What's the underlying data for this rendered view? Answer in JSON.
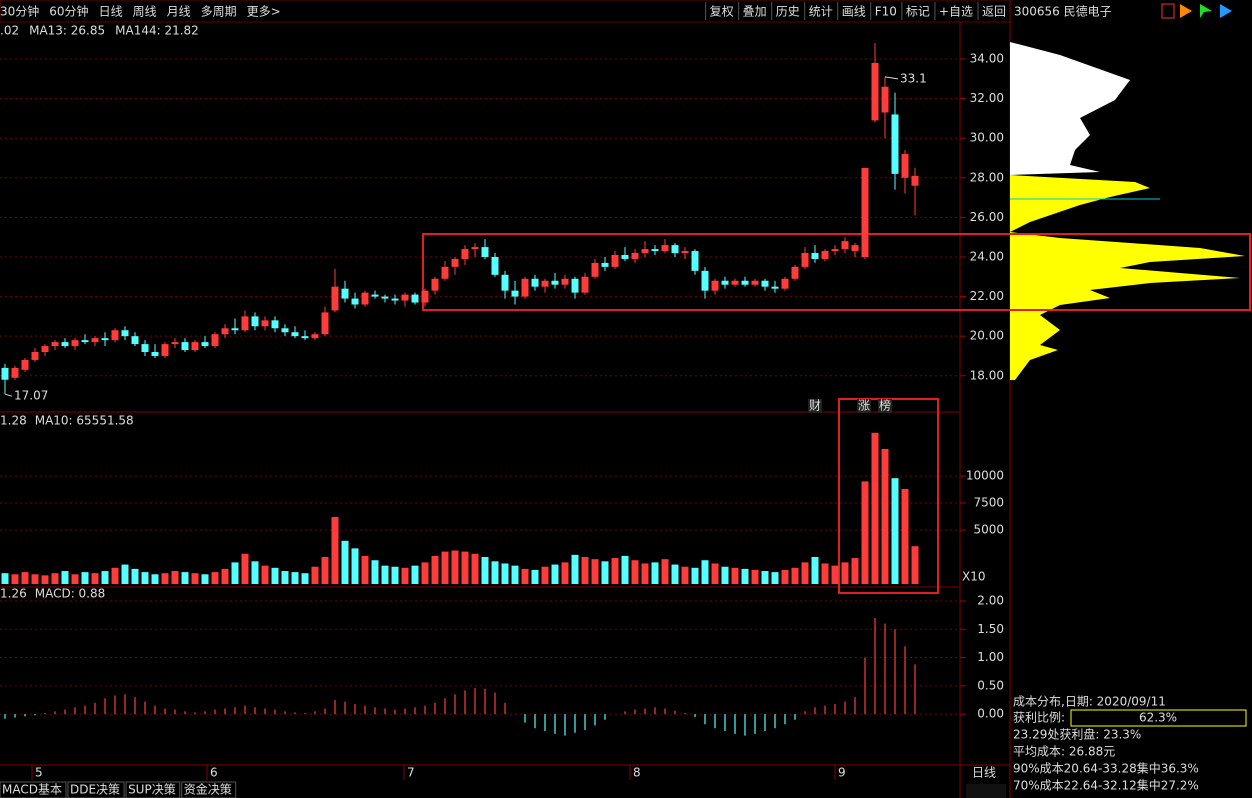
{
  "toolbar": {
    "periods": [
      "30分钟",
      "60分钟",
      "日线",
      "周线",
      "月线",
      "多周期",
      "更多>"
    ],
    "tools": [
      "复权",
      "叠加",
      "历史",
      "统计",
      "画线",
      "F10",
      "标记",
      "+自选",
      "返回"
    ],
    "stock": "300656 民德电子"
  },
  "price_panel": {
    "legend": [
      ".02",
      "MA13: 26.85",
      "MA144: 21.82"
    ],
    "ylim": [
      16.17,
      35.87
    ],
    "yticks": [
      {
        "value": 34,
        "label": "34.00"
      },
      {
        "value": 32,
        "label": "32.00"
      },
      {
        "value": 30,
        "label": "30.00"
      },
      {
        "value": 28,
        "label": "28.00"
      },
      {
        "value": 26,
        "label": "26.00"
      },
      {
        "value": 24,
        "label": "24.00"
      },
      {
        "value": 22,
        "label": "22.00"
      },
      {
        "value": 20,
        "label": "20.00"
      },
      {
        "value": 18,
        "label": "18.00"
      }
    ],
    "markers": [
      "财",
      "涨",
      "榜"
    ],
    "candles": [
      [
        18.4,
        18.6,
        17.07,
        17.8
      ],
      [
        17.9,
        18.5,
        17.8,
        18.4
      ],
      [
        18.3,
        18.9,
        18.2,
        18.8
      ],
      [
        18.8,
        19.4,
        18.7,
        19.2
      ],
      [
        19.2,
        19.6,
        19.0,
        19.5
      ],
      [
        19.5,
        19.8,
        19.3,
        19.7
      ],
      [
        19.7,
        19.9,
        19.4,
        19.5
      ],
      [
        19.5,
        19.9,
        19.3,
        19.8
      ],
      [
        19.8,
        20.1,
        19.6,
        19.7
      ],
      [
        19.7,
        20.0,
        19.5,
        19.9
      ],
      [
        19.9,
        20.2,
        19.5,
        19.8
      ],
      [
        19.8,
        20.4,
        19.7,
        20.3
      ],
      [
        20.3,
        20.5,
        19.8,
        20.0
      ],
      [
        20.0,
        20.2,
        19.5,
        19.6
      ],
      [
        19.6,
        19.8,
        19.0,
        19.2
      ],
      [
        19.2,
        19.6,
        18.9,
        19.0
      ],
      [
        19.0,
        19.7,
        18.9,
        19.6
      ],
      [
        19.6,
        19.9,
        19.4,
        19.7
      ],
      [
        19.7,
        19.9,
        19.2,
        19.3
      ],
      [
        19.3,
        19.8,
        19.2,
        19.7
      ],
      [
        19.7,
        20.0,
        19.4,
        19.5
      ],
      [
        19.5,
        20.2,
        19.4,
        20.1
      ],
      [
        20.1,
        20.6,
        19.9,
        20.4
      ],
      [
        20.4,
        20.9,
        20.1,
        20.3
      ],
      [
        20.3,
        21.3,
        20.2,
        21.0
      ],
      [
        21.0,
        21.2,
        20.3,
        20.5
      ],
      [
        20.5,
        21.0,
        20.3,
        20.8
      ],
      [
        20.8,
        21.0,
        20.2,
        20.4
      ],
      [
        20.4,
        20.6,
        20.0,
        20.2
      ],
      [
        20.2,
        20.5,
        19.9,
        20.0
      ],
      [
        20.0,
        20.3,
        19.8,
        19.9
      ],
      [
        19.9,
        20.2,
        19.8,
        20.1
      ],
      [
        20.1,
        21.5,
        20.0,
        21.2
      ],
      [
        21.3,
        23.4,
        21.2,
        22.5
      ],
      [
        22.4,
        22.8,
        21.7,
        21.9
      ],
      [
        21.9,
        22.2,
        21.4,
        21.6
      ],
      [
        21.6,
        22.3,
        21.5,
        22.2
      ],
      [
        22.1,
        22.3,
        21.9,
        22.0
      ],
      [
        22.0,
        22.1,
        21.7,
        21.9
      ],
      [
        21.9,
        22.1,
        21.6,
        21.8
      ],
      [
        21.8,
        22.2,
        21.5,
        22.1
      ],
      [
        22.1,
        22.2,
        21.6,
        21.7
      ],
      [
        21.7,
        22.4,
        21.5,
        22.3
      ],
      [
        22.3,
        23.0,
        22.1,
        22.9
      ],
      [
        22.9,
        23.8,
        22.8,
        23.5
      ],
      [
        23.5,
        24.0,
        23.1,
        23.9
      ],
      [
        23.9,
        24.6,
        23.6,
        24.4
      ],
      [
        24.4,
        24.7,
        24.0,
        24.5
      ],
      [
        24.5,
        24.9,
        23.9,
        24.0
      ],
      [
        24.0,
        24.2,
        23.0,
        23.1
      ],
      [
        23.1,
        23.3,
        21.9,
        22.3
      ],
      [
        22.3,
        22.8,
        21.6,
        22.0
      ],
      [
        22.0,
        23.0,
        21.9,
        22.9
      ],
      [
        22.9,
        23.1,
        22.3,
        22.5
      ],
      [
        22.5,
        22.9,
        22.2,
        22.8
      ],
      [
        22.8,
        23.2,
        22.4,
        22.6
      ],
      [
        22.6,
        23.1,
        22.4,
        22.9
      ],
      [
        22.9,
        23.0,
        21.9,
        22.2
      ],
      [
        22.2,
        23.2,
        22.1,
        23.0
      ],
      [
        23.0,
        23.9,
        22.9,
        23.7
      ],
      [
        23.7,
        24.0,
        23.3,
        23.5
      ],
      [
        23.5,
        24.3,
        23.4,
        24.1
      ],
      [
        24.1,
        24.5,
        23.8,
        23.9
      ],
      [
        23.9,
        24.4,
        23.7,
        24.2
      ],
      [
        24.2,
        24.8,
        24.0,
        24.4
      ],
      [
        24.4,
        24.6,
        24.1,
        24.3
      ],
      [
        24.3,
        24.9,
        24.2,
        24.6
      ],
      [
        24.6,
        24.7,
        24.0,
        24.2
      ],
      [
        24.2,
        24.5,
        23.9,
        24.3
      ],
      [
        24.3,
        24.4,
        23.1,
        23.3
      ],
      [
        23.3,
        23.5,
        21.9,
        22.3
      ],
      [
        22.3,
        22.9,
        22.1,
        22.8
      ],
      [
        22.8,
        23.0,
        22.4,
        22.6
      ],
      [
        22.6,
        22.9,
        22.5,
        22.8
      ],
      [
        22.8,
        23.0,
        22.5,
        22.6
      ],
      [
        22.6,
        22.9,
        22.5,
        22.8
      ],
      [
        22.8,
        22.9,
        22.3,
        22.5
      ],
      [
        22.5,
        22.8,
        22.2,
        22.4
      ],
      [
        22.4,
        23.0,
        22.3,
        22.9
      ],
      [
        22.9,
        23.6,
        22.8,
        23.5
      ],
      [
        23.5,
        24.5,
        23.4,
        24.2
      ],
      [
        24.2,
        24.6,
        23.7,
        23.9
      ],
      [
        23.9,
        24.4,
        23.8,
        24.3
      ],
      [
        24.3,
        24.6,
        24.1,
        24.4
      ],
      [
        24.4,
        25.0,
        24.2,
        24.8
      ],
      [
        24.3,
        24.7,
        24.0,
        24.6
      ],
      [
        24.0,
        28.5,
        23.9,
        28.5
      ],
      [
        30.9,
        34.81,
        30.8,
        33.8
      ],
      [
        31.3,
        33.1,
        30.0,
        32.6
      ],
      [
        31.2,
        32.3,
        27.4,
        28.2
      ],
      [
        28.0,
        29.4,
        27.2,
        29.2
      ],
      [
        27.6,
        28.5,
        26.1,
        28.1
      ]
    ]
  },
  "volume_panel": {
    "legend": [
      "1.28",
      "MA10: 65551.58"
    ],
    "unit": "X10",
    "ylim": [
      0,
      15926
    ],
    "yticks": [
      10000,
      7500,
      5000
    ],
    "values": [
      1000,
      900,
      1100,
      900,
      800,
      1000,
      1200,
      900,
      1100,
      1000,
      1200,
      1500,
      1800,
      1400,
      1100,
      900,
      1000,
      1200,
      1100,
      1000,
      900,
      1100,
      1400,
      2000,
      2800,
      2100,
      1700,
      1500,
      1200,
      1100,
      1000,
      1600,
      2500,
      6200,
      4000,
      3300,
      2600,
      2200,
      1700,
      1600,
      1500,
      1700,
      2000,
      2600,
      3000,
      3100,
      3000,
      2800,
      2500,
      2100,
      1900,
      1700,
      1400,
      1300,
      1600,
      1800,
      2000,
      2700,
      2500,
      2300,
      2100,
      2400,
      2600,
      2200,
      1900,
      2000,
      2300,
      1800,
      1600,
      1500,
      2200,
      1900,
      1600,
      1500,
      1400,
      1300,
      1200,
      1100,
      1300,
      1500,
      2000,
      2500,
      1900,
      1700,
      2000,
      2400,
      9500,
      14000,
      12500,
      9800,
      8800,
      3500
    ]
  },
  "macd_panel": {
    "legend": [
      "1.26",
      "MACD: 0.88"
    ],
    "ylim": [
      -0.9,
      2.23
    ],
    "yticks": [
      {
        "value": 2,
        "label": "2.00"
      },
      {
        "value": 1.5,
        "label": "1.50"
      },
      {
        "value": 1,
        "label": "1.00"
      },
      {
        "value": 0.5,
        "label": "0.50"
      },
      {
        "value": 0,
        "label": "0.00"
      }
    ],
    "values": [
      -0.08,
      -0.06,
      -0.04,
      -0.02,
      0.02,
      0.05,
      0.08,
      0.12,
      0.15,
      0.2,
      0.28,
      0.33,
      0.35,
      0.3,
      0.22,
      0.15,
      0.1,
      0.08,
      0.05,
      0.03,
      0.05,
      0.08,
      0.1,
      0.12,
      0.15,
      0.12,
      0.1,
      0.08,
      0.05,
      0.03,
      0.02,
      0.05,
      0.1,
      0.25,
      0.22,
      0.18,
      0.15,
      0.12,
      0.1,
      0.08,
      0.1,
      0.12,
      0.15,
      0.2,
      0.28,
      0.35,
      0.42,
      0.46,
      0.45,
      0.38,
      0.2,
      0.0,
      -0.15,
      -0.25,
      -0.3,
      -0.35,
      -0.38,
      -0.33,
      -0.28,
      -0.2,
      -0.1,
      0.0,
      0.05,
      0.08,
      0.1,
      0.12,
      0.1,
      0.06,
      0.02,
      -0.05,
      -0.18,
      -0.25,
      -0.3,
      -0.35,
      -0.38,
      -0.35,
      -0.3,
      -0.25,
      -0.18,
      -0.1,
      0.05,
      0.12,
      0.15,
      0.18,
      0.22,
      0.3,
      1.0,
      1.7,
      1.6,
      1.5,
      1.2,
      0.88
    ]
  },
  "months": [
    "5",
    "6",
    "7",
    "8",
    "9"
  ],
  "bottom_tabs": [
    "MACD基本",
    "DDE决策",
    "SUP决策",
    "资金决策"
  ],
  "period_label": "日线",
  "cost_panel": {
    "title": "成本分布,日期: 2020/09/11",
    "profit_label": "获利比例:",
    "profit_ratio": {
      "value": 62.3,
      "label": "62.3%"
    },
    "lines": [
      "23.29处获利盘: 23.3%",
      "平均成本: 26.88元",
      "90%成本20.64-33.28集中36.3%",
      "70%成本22.64-32.12集中27.2%"
    ]
  }
}
